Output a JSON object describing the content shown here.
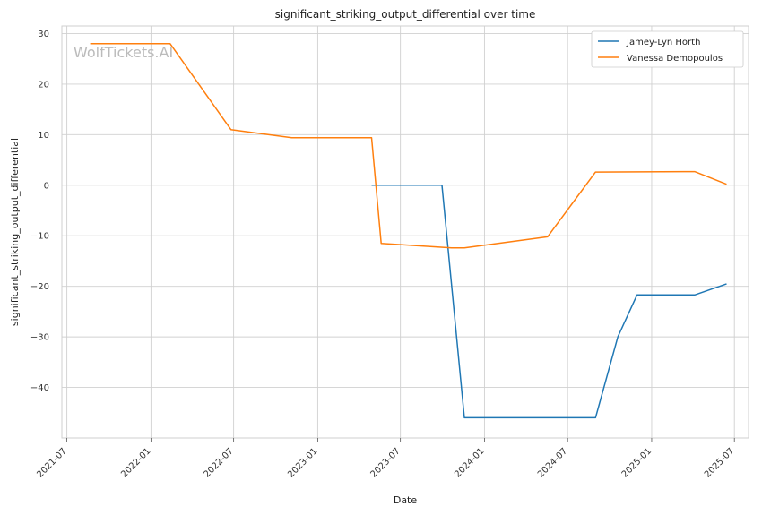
{
  "chart_data": {
    "type": "line",
    "title": "significant_striking_output_differential over time",
    "xlabel": "Date",
    "ylabel": "significant_striking_output_differential",
    "watermark": "WolfTickets.AI",
    "x_range": [
      "2021-06-20",
      "2025-08-01"
    ],
    "ylim": [
      -50,
      31.5
    ],
    "x_ticks": [
      "2021-07",
      "2022-01",
      "2022-07",
      "2023-01",
      "2023-07",
      "2024-01",
      "2024-07",
      "2025-01",
      "2025-07"
    ],
    "y_ticks": [
      30,
      20,
      10,
      0,
      -10,
      -20,
      -30,
      -40
    ],
    "grid": true,
    "legend_position": "top-right",
    "series": [
      {
        "name": "Jamey-Lyn Horth",
        "color": "#1f77b4",
        "points": [
          [
            "2023-04-29",
            0
          ],
          [
            "2023-09-30",
            0
          ],
          [
            "2023-11-18",
            -46
          ],
          [
            "2024-08-31",
            -46
          ],
          [
            "2024-10-19",
            -30
          ],
          [
            "2024-11-30",
            -21.7
          ],
          [
            "2025-04-05",
            -21.7
          ],
          [
            "2025-06-14",
            -19.5
          ]
        ]
      },
      {
        "name": "Vanessa Demopoulos",
        "color": "#ff7f0e",
        "points": [
          [
            "2021-08-21",
            28
          ],
          [
            "2022-02-12",
            28
          ],
          [
            "2022-06-25",
            11
          ],
          [
            "2022-11-05",
            9.4
          ],
          [
            "2023-04-29",
            9.4
          ],
          [
            "2023-05-20",
            -11.5
          ],
          [
            "2023-10-21",
            -12.4
          ],
          [
            "2023-11-18",
            -12.4
          ],
          [
            "2024-05-18",
            -10.2
          ],
          [
            "2024-08-31",
            2.6
          ],
          [
            "2025-04-05",
            2.7
          ],
          [
            "2025-06-14",
            0.2
          ]
        ]
      }
    ]
  }
}
